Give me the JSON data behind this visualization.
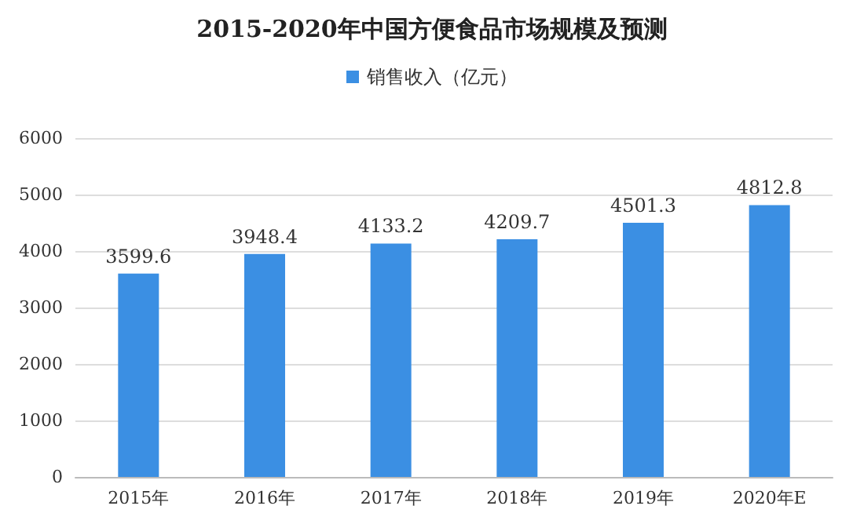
{
  "chart_data": {
    "type": "bar",
    "title": "2015-2020年中国方便食品市场规模及预测",
    "categories": [
      "2015年",
      "2016年",
      "2017年",
      "2018年",
      "2019年",
      "2020年E"
    ],
    "series": [
      {
        "name": "销售收入（亿元）",
        "color": "#3b8fe3",
        "values": [
          3599.6,
          3948.4,
          4133.2,
          4209.7,
          4501.3,
          4812.8
        ]
      }
    ],
    "ylim": [
      0,
      6000
    ],
    "yticks": [
      0,
      1000,
      2000,
      3000,
      4000,
      5000,
      6000
    ],
    "grid": "y",
    "legend": "top",
    "data_labels": true
  }
}
